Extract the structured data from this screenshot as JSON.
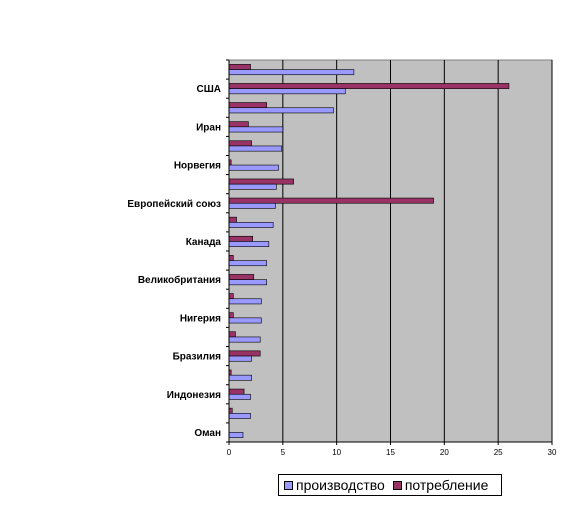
{
  "chart_data": {
    "type": "bar",
    "orientation": "horizontal",
    "title": "",
    "xlabel": "",
    "ylabel": "",
    "xlim": [
      0,
      30
    ],
    "x_ticks": [
      0,
      5,
      10,
      15,
      20,
      25,
      30
    ],
    "grid": true,
    "plot_background": "#C0C0C0",
    "legend_position": "bottom-right",
    "series": [
      {
        "name": "производство",
        "color": "#9999FF"
      },
      {
        "name": "потребление",
        "color": "#993366"
      }
    ],
    "categories_top_to_bottom": [
      {
        "label": "",
        "производство": 11.6,
        "потребление": 2.0
      },
      {
        "label": "США",
        "производство": 10.8,
        "потребление": 26.0
      },
      {
        "label": "",
        "производство": 9.7,
        "потребление": 3.5
      },
      {
        "label": "Иран",
        "производство": 5.0,
        "потребление": 1.8
      },
      {
        "label": "",
        "производство": 4.9,
        "потребление": 2.1
      },
      {
        "label": "Норвегия",
        "производство": 4.6,
        "потребление": 0.2
      },
      {
        "label": "",
        "производство": 4.4,
        "потребление": 6.0
      },
      {
        "label": "Европейский союз",
        "производство": 4.3,
        "потребление": 19.0
      },
      {
        "label": "",
        "производство": 4.1,
        "потребление": 0.7
      },
      {
        "label": "Канада",
        "производство": 3.7,
        "потребление": 2.2
      },
      {
        "label": "",
        "производство": 3.5,
        "потребление": 0.4
      },
      {
        "label": "Великобритания",
        "производство": 3.5,
        "потребление": 2.3
      },
      {
        "label": "",
        "производство": 3.0,
        "потребление": 0.4
      },
      {
        "label": "Нигерия",
        "производство": 3.0,
        "потребление": 0.4
      },
      {
        "label": "",
        "производство": 2.9,
        "потребление": 0.6
      },
      {
        "label": "Бразилия",
        "производство": 2.1,
        "потребление": 2.9
      },
      {
        "label": "",
        "производство": 2.1,
        "потребление": 0.2
      },
      {
        "label": "Индонезия",
        "производство": 2.0,
        "потребление": 1.4
      },
      {
        "label": "",
        "производство": 2.0,
        "потребление": 0.3
      },
      {
        "label": "Оман",
        "производство": 1.3,
        "потребление": 0.0
      }
    ]
  },
  "legend": {
    "items": [
      {
        "label": "производство",
        "color": "#9999FF"
      },
      {
        "label": "потребление",
        "color": "#993366"
      }
    ]
  }
}
